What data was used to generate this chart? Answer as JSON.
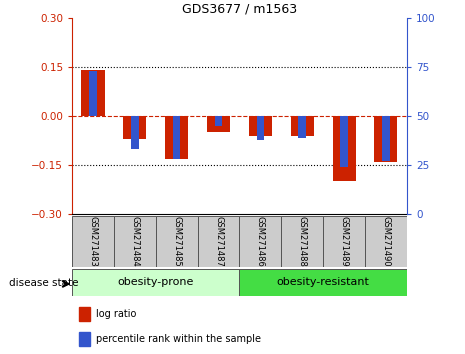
{
  "title": "GDS3677 / m1563",
  "samples": [
    "GSM271483",
    "GSM271484",
    "GSM271485",
    "GSM271487",
    "GSM271486",
    "GSM271488",
    "GSM271489",
    "GSM271490"
  ],
  "log_ratio": [
    0.14,
    -0.07,
    -0.13,
    -0.05,
    -0.06,
    -0.06,
    -0.2,
    -0.14
  ],
  "percentile_rank": [
    73,
    33,
    28,
    45,
    38,
    39,
    24,
    27
  ],
  "ylim_left": [
    -0.3,
    0.3
  ],
  "ylim_right": [
    0,
    100
  ],
  "yticks_left": [
    -0.3,
    -0.15,
    0,
    0.15,
    0.3
  ],
  "yticks_right": [
    0,
    25,
    50,
    75,
    100
  ],
  "bar_color_red": "#cc2200",
  "bar_color_blue": "#3355cc",
  "obesity_prone_count": 4,
  "obesity_resistant_count": 4,
  "label_prone": "obesity-prone",
  "label_resistant": "obesity-resistant",
  "label_disease": "disease state",
  "legend_red": "log ratio",
  "legend_blue": "percentile rank within the sample",
  "prone_bg": "#ccffcc",
  "resistant_bg": "#44dd44",
  "tick_label_bg": "#cccccc"
}
